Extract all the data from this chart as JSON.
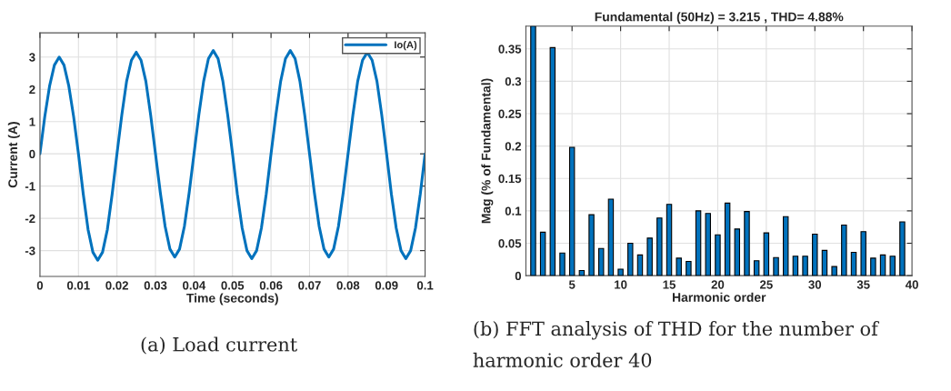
{
  "chart_data": [
    {
      "type": "line",
      "xlabel": "Time (seconds)",
      "ylabel": "Current (A)",
      "xlim": [
        0,
        0.1
      ],
      "ylim": [
        -3.8,
        3.75
      ],
      "xticks": [
        0,
        0.01,
        0.02,
        0.03,
        0.04,
        0.05,
        0.06,
        0.07,
        0.08,
        0.09,
        0.1
      ],
      "yticks": [
        -3,
        -2,
        -1,
        0,
        1,
        2,
        3
      ],
      "grid": true,
      "legend": "top right",
      "annotations": [
        "(a) Load current"
      ],
      "x": [
        0,
        0.00125,
        0.0025,
        0.00375,
        0.005,
        0.00625,
        0.0075,
        0.00875,
        0.01,
        0.01125,
        0.0125,
        0.01375,
        0.015,
        0.01625,
        0.0175,
        0.01875,
        0.02,
        0.02125,
        0.0225,
        0.02375,
        0.025,
        0.02625,
        0.0275,
        0.02875,
        0.03,
        0.03125,
        0.0325,
        0.03375,
        0.035,
        0.03625,
        0.0375,
        0.03875,
        0.04,
        0.04125,
        0.0425,
        0.04375,
        0.045,
        0.04625,
        0.0475,
        0.04875,
        0.05,
        0.05125,
        0.0525,
        0.05375,
        0.055,
        0.05625,
        0.0575,
        0.05875,
        0.06,
        0.06125,
        0.0625,
        0.06375,
        0.065,
        0.06625,
        0.0675,
        0.06875,
        0.07,
        0.07125,
        0.0725,
        0.07375,
        0.075,
        0.07625,
        0.0775,
        0.07875,
        0.08,
        0.08125,
        0.0825,
        0.08375,
        0.085,
        0.08625,
        0.0875,
        0.08875,
        0.09,
        0.09125,
        0.0925,
        0.09375,
        0.095,
        0.09625,
        0.0975,
        0.09875,
        0.1
      ],
      "series": [
        {
          "name": "Io(A)",
          "color": "#0072bd",
          "values": [
            0,
            1.15,
            2.1,
            2.75,
            3.0,
            2.75,
            2.1,
            1.15,
            0,
            -1.25,
            -2.35,
            -3.05,
            -3.3,
            -3.05,
            -2.35,
            -1.25,
            0,
            1.2,
            2.25,
            2.9,
            3.15,
            2.9,
            2.25,
            1.2,
            0,
            -1.2,
            -2.25,
            -2.95,
            -3.2,
            -2.95,
            -2.25,
            -1.2,
            0,
            1.2,
            2.25,
            2.95,
            3.2,
            2.95,
            2.25,
            1.2,
            0,
            -1.25,
            -2.3,
            -3.0,
            -3.25,
            -3.0,
            -2.3,
            -1.25,
            0,
            1.2,
            2.25,
            2.95,
            3.2,
            2.95,
            2.25,
            1.2,
            0,
            -1.2,
            -2.25,
            -2.95,
            -3.2,
            -2.95,
            -2.25,
            -1.2,
            0,
            1.2,
            2.25,
            2.9,
            3.15,
            2.9,
            2.25,
            1.2,
            0,
            -1.25,
            -2.3,
            -3.0,
            -3.25,
            -3.0,
            -2.3,
            -1.25,
            0
          ]
        }
      ]
    },
    {
      "type": "bar",
      "title": "Fundamental (50Hz) = 3.215 , THD= 4.88%",
      "xlabel": "Harmonic order",
      "ylabel": "Mag (% of Fundamental)",
      "xlim": [
        0.25,
        40
      ],
      "ylim": [
        0,
        0.385
      ],
      "xticks": [
        5,
        10,
        15,
        20,
        25,
        30,
        35,
        40
      ],
      "yticks": [
        0,
        0.05,
        0.1,
        0.15,
        0.2,
        0.25,
        0.3,
        0.35
      ],
      "grid": true,
      "annotations": [
        "(b) FFT analysis of THD for the number of harmonic order 40"
      ],
      "x": [
        1,
        2,
        3,
        4,
        5,
        6,
        7,
        8,
        9,
        10,
        11,
        12,
        13,
        14,
        15,
        16,
        17,
        18,
        19,
        20,
        21,
        22,
        23,
        24,
        25,
        26,
        27,
        28,
        29,
        30,
        31,
        32,
        33,
        34,
        35,
        36,
        37,
        38,
        39
      ],
      "series": [
        {
          "color": "#0072bd",
          "values": [
            0.385,
            0.067,
            0.352,
            0.035,
            0.198,
            0.008,
            0.094,
            0.042,
            0.118,
            0.01,
            0.05,
            0.032,
            0.058,
            0.089,
            0.11,
            0.027,
            0.022,
            0.1,
            0.096,
            0.063,
            0.112,
            0.072,
            0.099,
            0.023,
            0.066,
            0.028,
            0.091,
            0.03,
            0.03,
            0.064,
            0.039,
            0.014,
            0.078,
            0.036,
            0.068,
            0.027,
            0.032,
            0.03,
            0.083
          ]
        }
      ]
    }
  ]
}
